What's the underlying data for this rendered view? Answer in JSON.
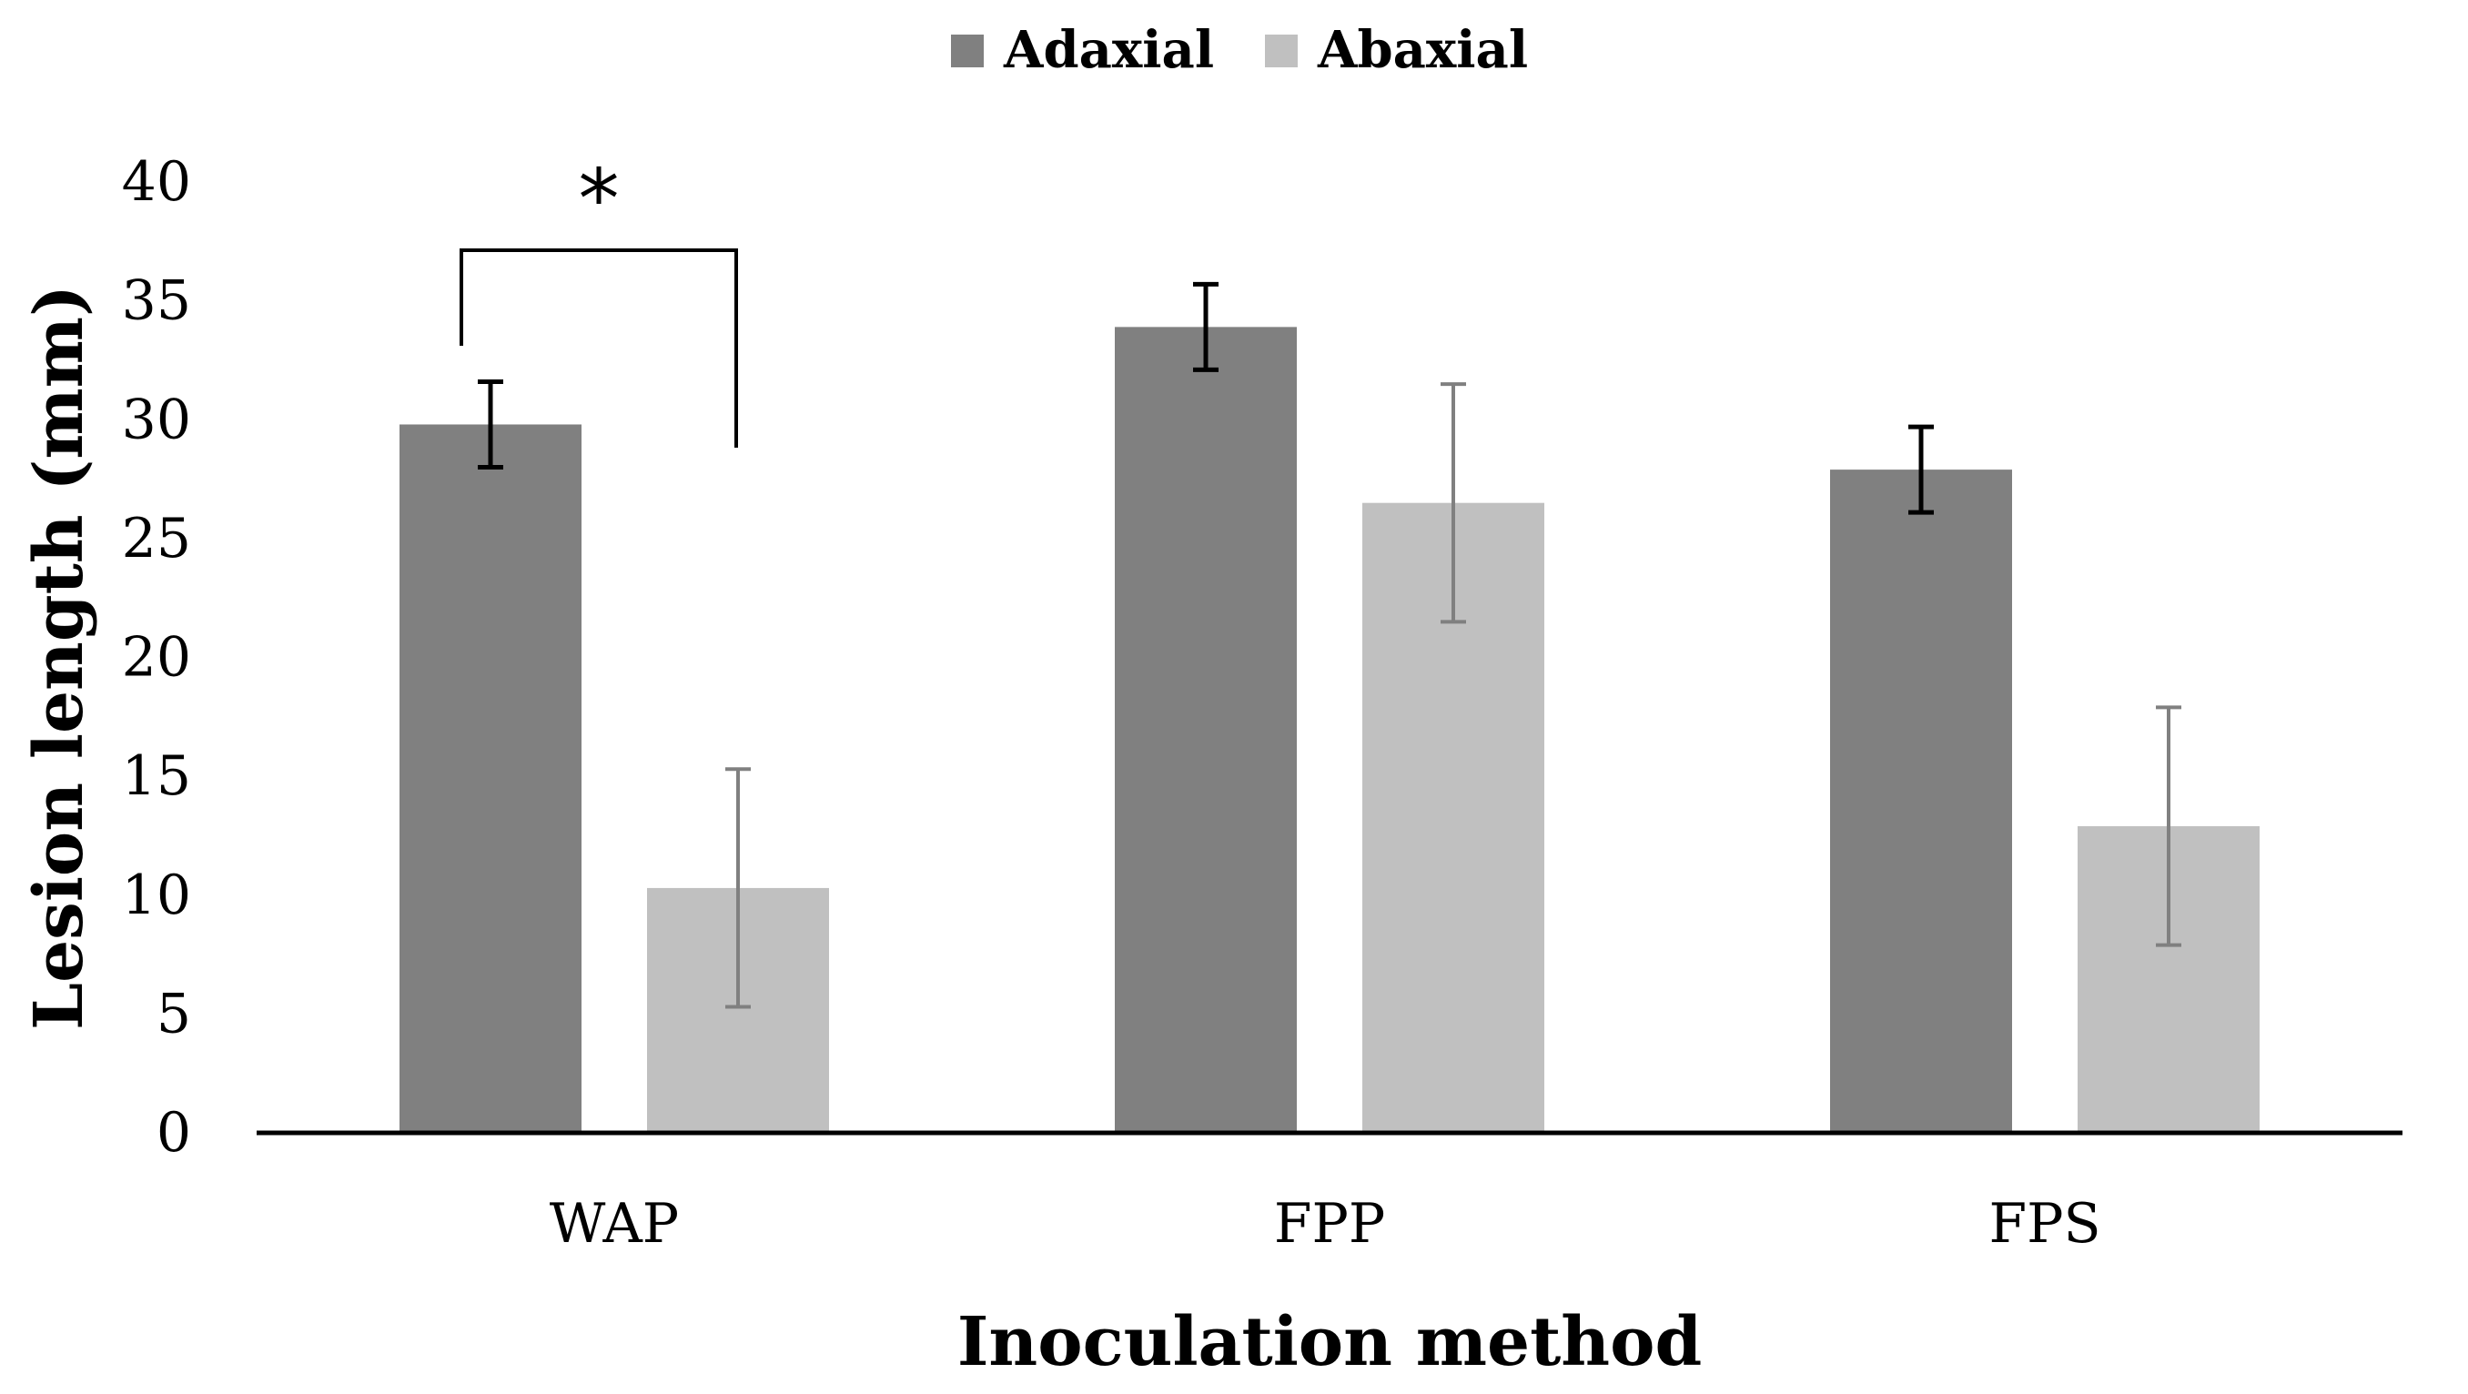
{
  "chart_data": {
    "type": "bar",
    "title": "",
    "xlabel": "Inoculation method",
    "ylabel": "Lesion length (mm)",
    "ylim": [
      0,
      40
    ],
    "yticks": [
      0,
      5,
      10,
      15,
      20,
      25,
      30,
      35,
      40
    ],
    "categories": [
      "WAP",
      "FPP",
      "FPS"
    ],
    "series": [
      {
        "name": "Adaxial",
        "color": "#808080",
        "error_color": "#000000",
        "values": [
          29.8,
          33.9,
          27.9
        ],
        "errors": [
          1.8,
          1.8,
          1.8
        ]
      },
      {
        "name": "Abaxial",
        "color": "#c0c0c0",
        "error_color": "#808080",
        "values": [
          10.3,
          26.5,
          12.9
        ],
        "errors": [
          5.0,
          5.0,
          5.0
        ]
      }
    ],
    "legend_position": "top-center",
    "annotations": [
      {
        "text": "*",
        "type": "significance-bracket",
        "category": "WAP",
        "between": [
          "Adaxial",
          "Abaxial"
        ]
      }
    ]
  }
}
